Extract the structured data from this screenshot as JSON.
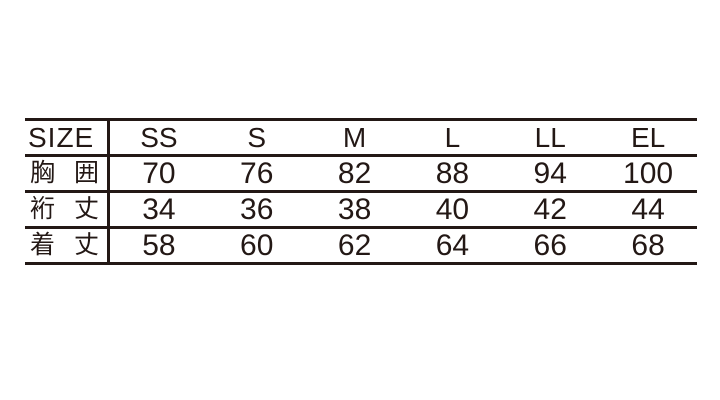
{
  "colors": {
    "ink": "#231815",
    "background": "#ffffff"
  },
  "chart_data": {
    "type": "table",
    "title": "",
    "columns": [
      "SIZE",
      "SS",
      "S",
      "M",
      "L",
      "LL",
      "EL"
    ],
    "rows": [
      {
        "label": "胸囲",
        "label_chars": [
          "胸",
          "囲"
        ],
        "values": [
          70,
          76,
          82,
          88,
          94,
          100
        ]
      },
      {
        "label": "裄丈",
        "label_chars": [
          "裄",
          "丈"
        ],
        "values": [
          34,
          36,
          38,
          40,
          42,
          44
        ]
      },
      {
        "label": "着丈",
        "label_chars": [
          "着",
          "丈"
        ],
        "values": [
          58,
          60,
          62,
          64,
          66,
          68
        ]
      }
    ],
    "layout": {
      "grid": "horizontal rules only, single vertical rule after label column",
      "rule_thickness_px": 3,
      "outer_side_borders": false
    }
  }
}
